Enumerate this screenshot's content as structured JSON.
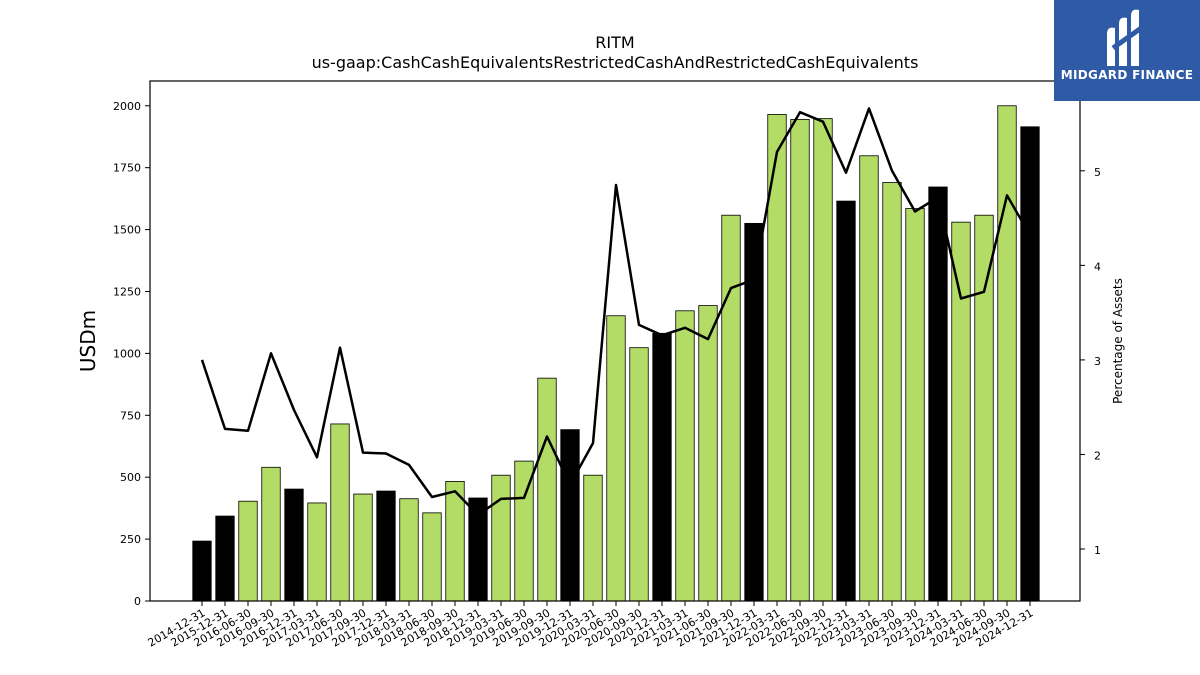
{
  "chart_data": {
    "type": "bar",
    "title": "RITM",
    "subtitle": "us-gaap:CashCashEquivalentsRestrictedCashAndRestrictedCashEquivalents",
    "ylabel": "USDm",
    "y2label": "Percentage of Assets",
    "ylim": [
      0,
      2100
    ],
    "y2lim": [
      0.45,
      5.95
    ],
    "yticks": [
      0,
      250,
      500,
      750,
      1000,
      1250,
      1500,
      1750,
      2000
    ],
    "y2ticks": [
      1,
      2,
      3,
      4,
      5
    ],
    "categories": [
      "2014-12-31",
      "2015-12-31",
      "2016-06-30",
      "2016-09-30",
      "2016-12-31",
      "2017-03-31",
      "2017-06-30",
      "2017-09-30",
      "2017-12-31",
      "2018-03-31",
      "2018-06-30",
      "2018-09-30",
      "2018-12-31",
      "2019-03-31",
      "2019-06-30",
      "2019-09-30",
      "2019-12-31",
      "2020-03-31",
      "2020-06-30",
      "2020-09-30",
      "2020-12-31",
      "2021-03-31",
      "2021-06-30",
      "2021-09-30",
      "2021-12-31",
      "2022-03-31",
      "2022-06-30",
      "2022-09-30",
      "2022-12-31",
      "2023-03-31",
      "2023-06-30",
      "2023-09-30",
      "2023-12-31",
      "2024-03-31",
      "2024-06-30",
      "2024-09-30",
      "2024-12-31"
    ],
    "series": [
      {
        "name": "USDm",
        "kind": "bar",
        "values": [
          242,
          343,
          403,
          540,
          452,
          396,
          715,
          432,
          444,
          413,
          356,
          483,
          416,
          508,
          565,
          900,
          692,
          508,
          1152,
          1023,
          1081,
          1172,
          1193,
          1558,
          1525,
          1965,
          1945,
          1948,
          1615,
          1798,
          1690,
          1585,
          1672,
          1530,
          1558,
          2000,
          1915
        ],
        "year_end": [
          true,
          true,
          false,
          false,
          true,
          false,
          false,
          false,
          true,
          false,
          false,
          false,
          true,
          false,
          false,
          false,
          true,
          false,
          false,
          false,
          true,
          false,
          false,
          false,
          true,
          false,
          false,
          false,
          true,
          false,
          false,
          false,
          true,
          false,
          false,
          false,
          true
        ]
      },
      {
        "name": "Percentage of Assets",
        "kind": "line",
        "axis": "right",
        "values": [
          3.0,
          2.27,
          2.25,
          3.07,
          2.47,
          1.97,
          3.13,
          2.02,
          2.01,
          1.89,
          1.55,
          1.61,
          1.36,
          1.53,
          1.54,
          2.19,
          1.68,
          2.12,
          4.85,
          3.37,
          3.26,
          3.34,
          3.22,
          3.76,
          3.85,
          5.2,
          5.62,
          5.52,
          4.98,
          5.66,
          5.0,
          4.57,
          4.72,
          3.65,
          3.72,
          4.74,
          4.32
        ]
      }
    ],
    "colors": {
      "bar": "#b2dc65",
      "bar_year_end": "#000000",
      "line": "#000000"
    },
    "grid": false,
    "legend": "none"
  },
  "logo": {
    "text": "MIDGARD FINANCE",
    "background": "#2f5aa6"
  }
}
